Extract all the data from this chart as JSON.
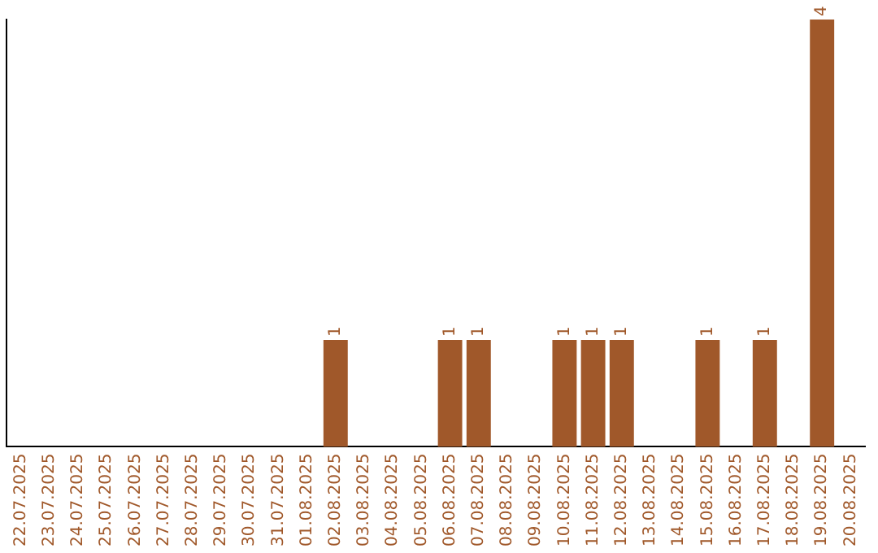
{
  "chart_data": {
    "type": "bar",
    "categories": [
      "22.07.2025",
      "23.07.2025",
      "24.07.2025",
      "25.07.2025",
      "26.07.2025",
      "27.07.2025",
      "28.07.2025",
      "29.07.2025",
      "30.07.2025",
      "31.07.2025",
      "01.08.2025",
      "02.08.2025",
      "03.08.2025",
      "04.08.2025",
      "05.08.2025",
      "06.08.2025",
      "07.08.2025",
      "08.08.2025",
      "09.08.2025",
      "10.08.2025",
      "11.08.2025",
      "12.08.2025",
      "13.08.2025",
      "14.08.2025",
      "15.08.2025",
      "16.08.2025",
      "17.08.2025",
      "18.08.2025",
      "19.08.2025",
      "20.08.2025"
    ],
    "values": [
      0,
      0,
      0,
      0,
      0,
      0,
      0,
      0,
      0,
      0,
      0,
      1,
      0,
      0,
      0,
      1,
      1,
      0,
      0,
      1,
      1,
      1,
      0,
      0,
      1,
      0,
      1,
      0,
      4,
      0
    ],
    "value_labels": [
      null,
      null,
      null,
      null,
      null,
      null,
      null,
      null,
      null,
      null,
      null,
      "1",
      null,
      null,
      null,
      "1",
      "1",
      null,
      null,
      "1",
      "1",
      "1",
      null,
      null,
      "1",
      null,
      "1",
      null,
      "4",
      null
    ],
    "color": "#a0582a",
    "ylim": [
      0,
      4
    ],
    "tick_labels": "x",
    "grid": false,
    "legend": false
  }
}
